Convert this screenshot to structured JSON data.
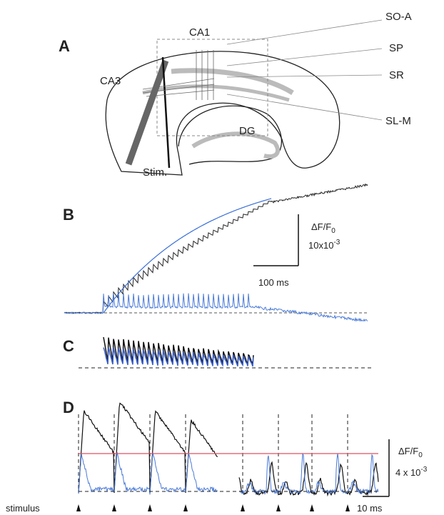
{
  "panel_a": {
    "label": "A",
    "labels": {
      "ca1": "CA1",
      "so_a": "SO-A",
      "sp": "SP",
      "sr": "SR",
      "sl_m": "SL-M",
      "ca3": "CA3",
      "dg": "DG",
      "stim": "Stim."
    }
  },
  "panel_b": {
    "label": "B",
    "scale": {
      "y_label": {
        "text": "ΔF/F",
        "sub": "0"
      },
      "y_value": {
        "text": "10x10",
        "sup": "-3"
      },
      "x_value": "100 ms"
    }
  },
  "panel_c": {
    "label": "C"
  },
  "panel_d": {
    "label": "D",
    "scale": {
      "y_label": {
        "text": "ΔF/F",
        "sub": "0"
      },
      "y_value": {
        "text": "4 x 10",
        "sup": "-3"
      },
      "x_value": "10 ms"
    },
    "stimulus_label": "stimulus"
  }
}
